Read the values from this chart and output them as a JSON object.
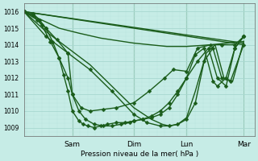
{
  "bg_color": "#c6ece6",
  "grid_color_major": "#a8d8d0",
  "grid_color_minor": "#b8e4de",
  "line_color": "#1a5c1a",
  "ylabel": "Pression niveau de la mer( hPa )",
  "ylim": [
    1008.5,
    1016.5
  ],
  "yticks": [
    1009,
    1010,
    1011,
    1012,
    1013,
    1014,
    1015,
    1016
  ],
  "day_labels": [
    "Sam",
    "Dim",
    "Lun",
    "Mar"
  ],
  "day_positions": [
    0.22,
    0.5,
    0.74,
    1.0
  ],
  "xlim": [
    0,
    1.05
  ],
  "series": [
    {
      "x": [
        0.0,
        1.0
      ],
      "y": [
        1016.0,
        1014.0
      ],
      "marker": null,
      "linewidth": 1.0,
      "markersize": 0
    },
    {
      "x": [
        0.0,
        1.0
      ],
      "y": [
        1016.0,
        1014.1
      ],
      "marker": null,
      "linewidth": 1.0,
      "markersize": 0
    },
    {
      "x": [
        0.0,
        0.08,
        0.16,
        0.25,
        0.35,
        0.5,
        0.65,
        0.74,
        0.85,
        1.0
      ],
      "y": [
        1016.0,
        1015.5,
        1015.0,
        1014.7,
        1014.4,
        1014.1,
        1013.9,
        1013.9,
        1014.0,
        1014.2
      ],
      "marker": null,
      "linewidth": 1.0,
      "markersize": 0
    },
    {
      "x": [
        0.0,
        0.06,
        0.1,
        0.15,
        0.2,
        0.22,
        0.26,
        0.3,
        0.36,
        0.42,
        0.5,
        0.57,
        0.64,
        0.68,
        0.74,
        0.79,
        0.85,
        0.9,
        0.96,
        1.0
      ],
      "y": [
        1016.0,
        1015.5,
        1015.0,
        1014.3,
        1013.5,
        1011.0,
        1010.2,
        1010.0,
        1010.1,
        1010.2,
        1010.5,
        1011.2,
        1012.0,
        1012.5,
        1012.4,
        1013.8,
        1014.0,
        1014.0,
        1014.0,
        1014.5
      ],
      "marker": "D",
      "linewidth": 1.0,
      "markersize": 2.5
    },
    {
      "x": [
        0.0,
        0.04,
        0.08,
        0.12,
        0.16,
        0.2,
        0.22,
        0.25,
        0.28,
        0.32,
        0.36,
        0.4,
        0.44,
        0.48,
        0.5,
        0.54,
        0.58,
        0.62,
        0.66,
        0.7,
        0.74,
        0.79,
        0.84,
        0.88,
        0.92,
        0.96,
        1.0
      ],
      "y": [
        1016.0,
        1015.8,
        1015.2,
        1014.2,
        1013.2,
        1012.0,
        1011.0,
        1010.0,
        1009.5,
        1009.2,
        1009.1,
        1009.1,
        1009.2,
        1009.3,
        1009.4,
        1009.5,
        1009.7,
        1010.0,
        1010.5,
        1011.2,
        1012.0,
        1013.0,
        1013.8,
        1012.0,
        1011.5,
        1013.8,
        1014.5
      ],
      "marker": "D",
      "linewidth": 1.0,
      "markersize": 2.5
    },
    {
      "x": [
        0.0,
        0.04,
        0.07,
        0.1,
        0.13,
        0.16,
        0.18,
        0.2,
        0.22,
        0.25,
        0.27,
        0.29,
        0.32,
        0.35,
        0.38,
        0.42,
        0.46,
        0.5,
        0.54,
        0.58,
        0.62,
        0.66,
        0.7,
        0.74,
        0.78,
        0.82,
        0.86,
        0.88,
        0.92,
        0.96,
        1.0
      ],
      "y": [
        1016.0,
        1015.9,
        1015.5,
        1015.0,
        1014.2,
        1013.2,
        1012.2,
        1011.2,
        1010.0,
        1009.4,
        1009.2,
        1009.1,
        1009.0,
        1009.1,
        1009.2,
        1009.3,
        1009.3,
        1009.4,
        1009.5,
        1009.6,
        1009.8,
        1010.2,
        1011.0,
        1012.0,
        1013.4,
        1013.8,
        1011.8,
        1011.5,
        1012.0,
        1013.8,
        1014.5
      ],
      "marker": "D",
      "linewidth": 1.0,
      "markersize": 2.5
    },
    {
      "x": [
        0.0,
        0.1,
        0.2,
        0.3,
        0.4,
        0.5,
        0.56,
        0.62,
        0.66,
        0.7,
        0.74,
        0.78,
        0.82,
        0.86,
        0.9,
        0.94,
        1.0
      ],
      "y": [
        1016.0,
        1014.5,
        1013.5,
        1012.5,
        1011.2,
        1009.8,
        1009.3,
        1009.1,
        1009.1,
        1009.2,
        1009.5,
        1010.5,
        1013.0,
        1013.8,
        1012.0,
        1011.8,
        1014.0
      ],
      "marker": "D",
      "linewidth": 1.0,
      "markersize": 2.5
    },
    {
      "x": [
        0.0,
        0.1,
        0.2,
        0.3,
        0.4,
        0.5,
        0.58,
        0.63,
        0.66,
        0.7,
        0.74,
        0.78,
        0.83,
        0.87,
        0.91,
        0.95,
        1.0
      ],
      "y": [
        1016.0,
        1014.8,
        1013.8,
        1012.8,
        1011.5,
        1010.2,
        1009.5,
        1009.2,
        1009.1,
        1009.2,
        1009.6,
        1011.2,
        1013.5,
        1014.0,
        1012.0,
        1011.8,
        1014.2
      ],
      "marker": null,
      "linewidth": 1.0,
      "markersize": 0
    }
  ]
}
